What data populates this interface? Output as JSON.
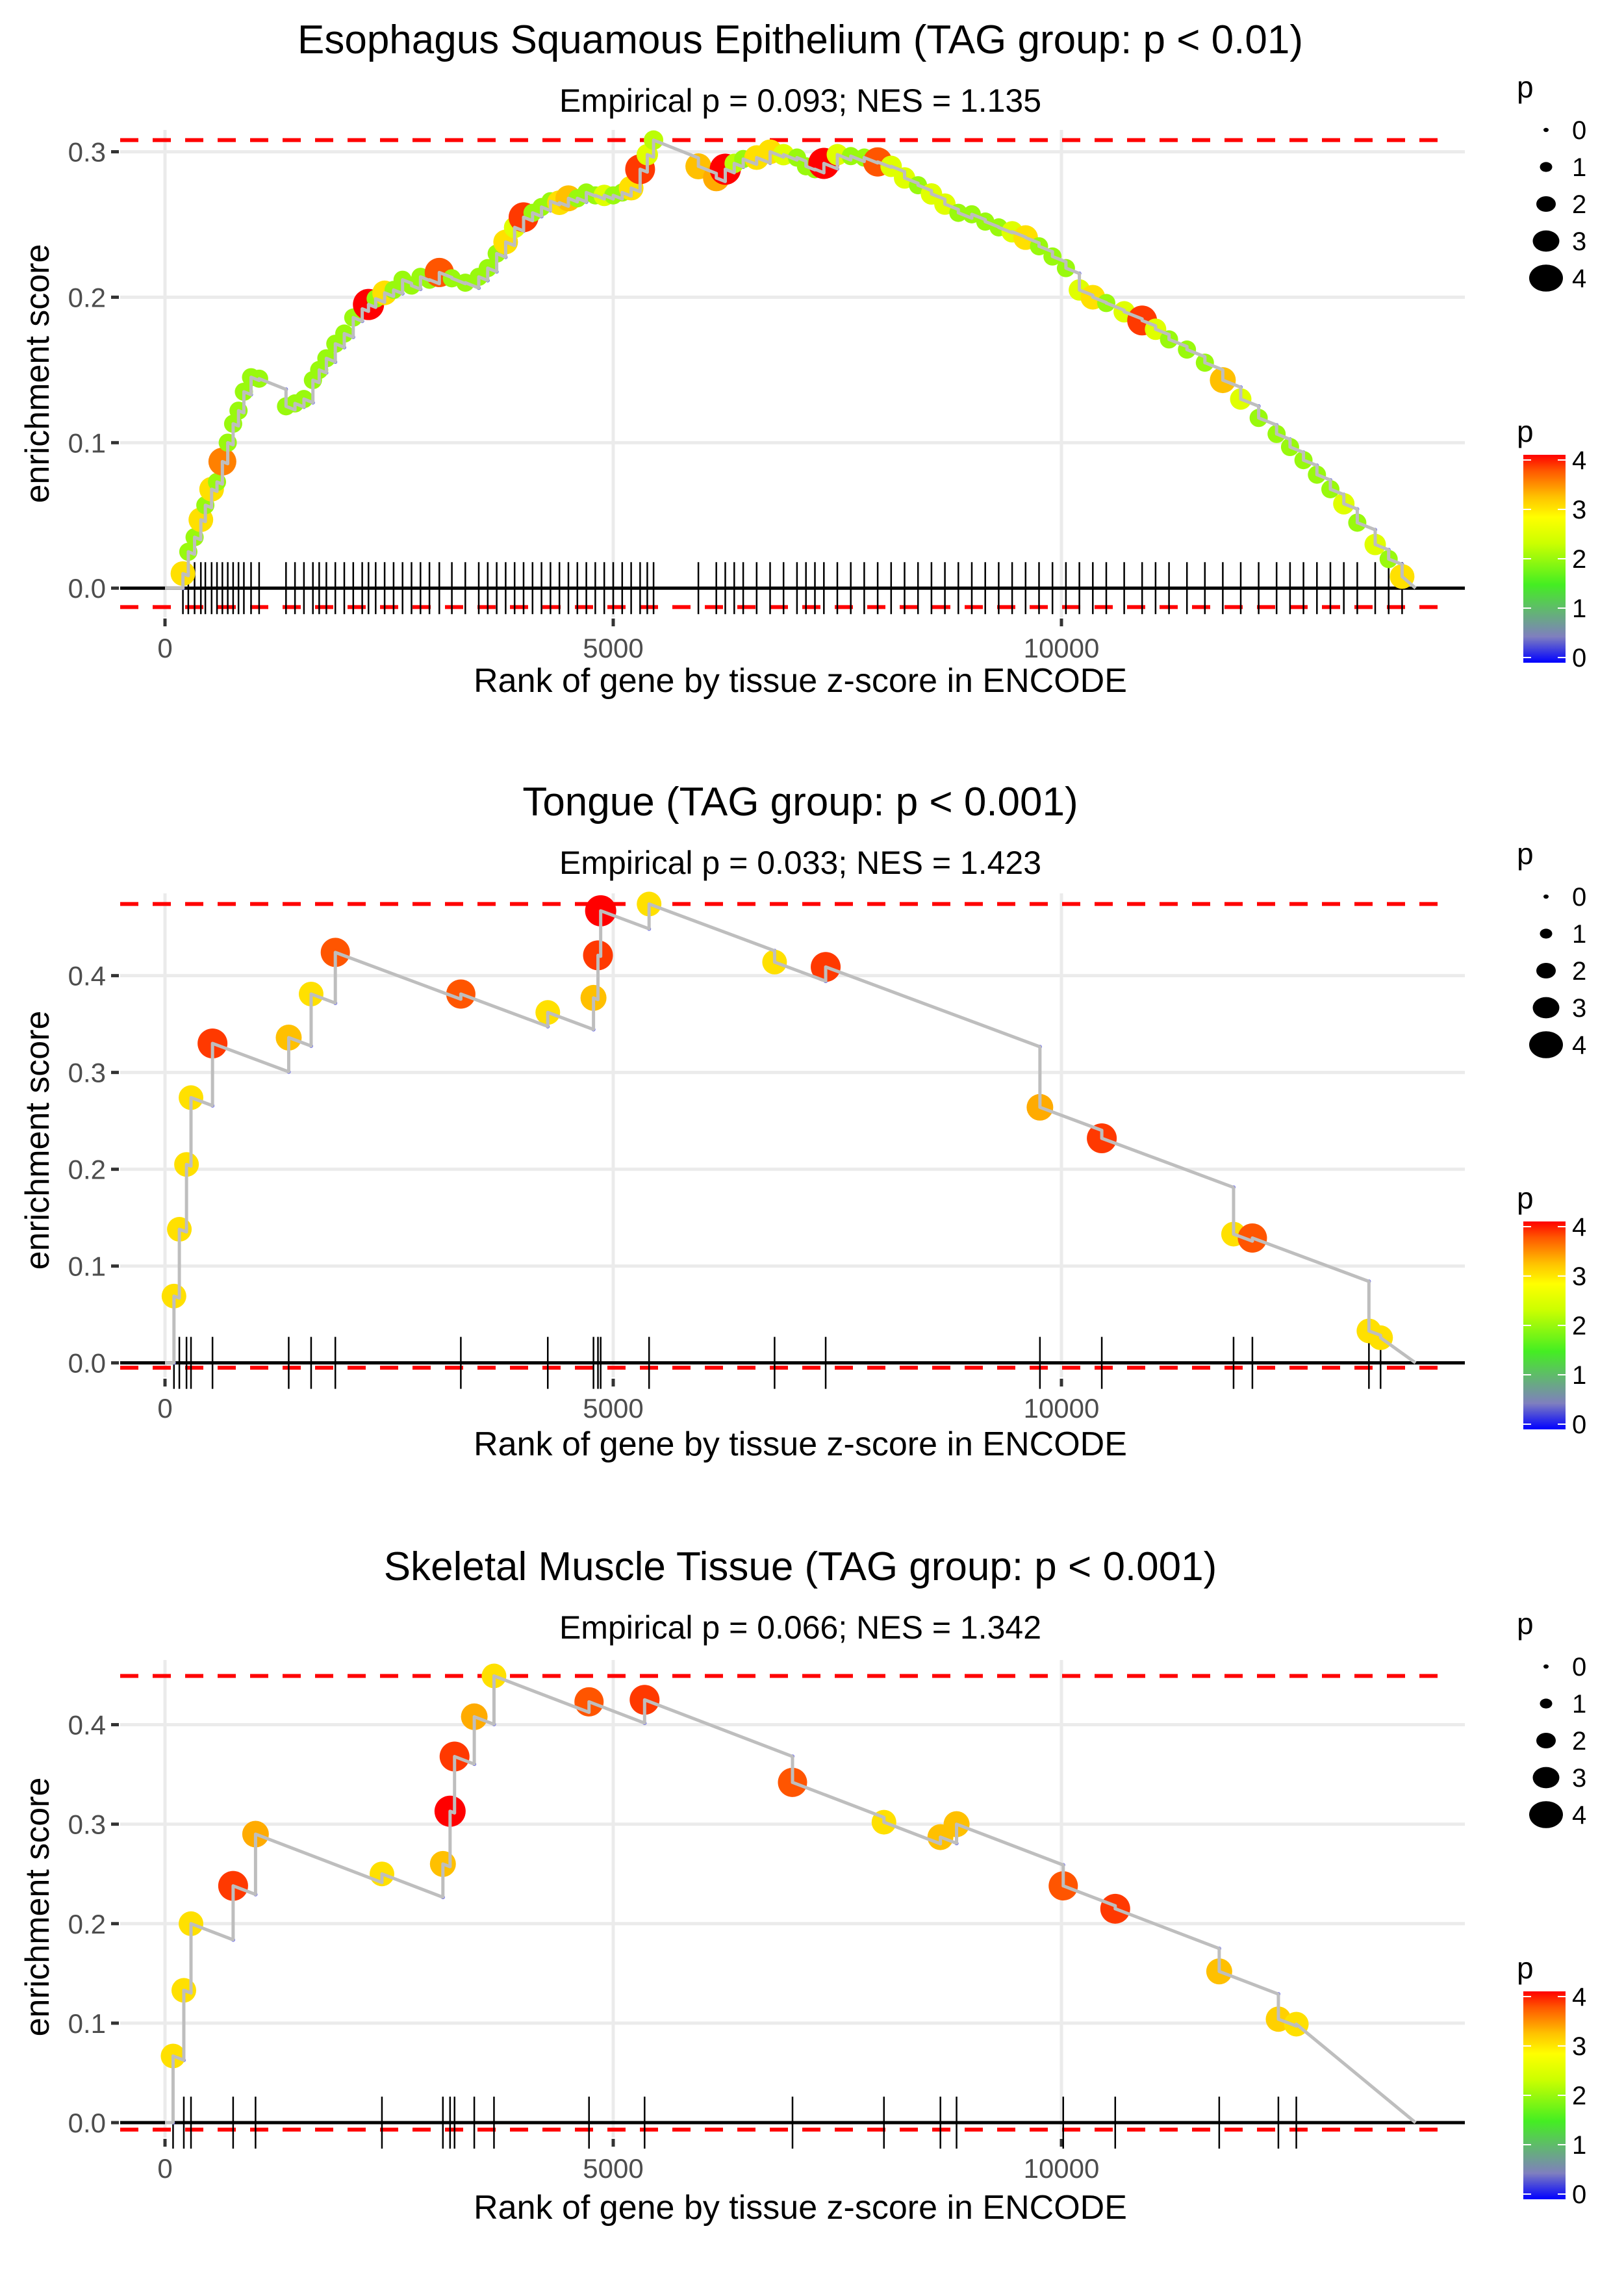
{
  "figure": {
    "legend_size_title": "p",
    "legend_color_title": "p",
    "legend_size_levels": [
      "0",
      "1",
      "2",
      "3",
      "4"
    ],
    "legend_color_ticks": [
      "4",
      "3",
      "2",
      "1",
      "0"
    ],
    "colorscale": [
      "#0000ff",
      "#7f7fbf",
      "#44ee44",
      "#ccff00",
      "#ffff00",
      "#ffa500",
      "#ff4500",
      "#ff0000"
    ]
  },
  "chart_data": [
    {
      "type": "line",
      "title": "Esophagus Squamous Epithelium (TAG group: p < 0.01)",
      "subtitle": "Empirical p = 0.093; NES = 1.135",
      "xlabel": "Rank of gene by tissue z-score in ENCODE",
      "ylabel": "enrichment score",
      "xlim": [
        -500,
        14500
      ],
      "ylim": [
        -0.02,
        0.315
      ],
      "xticks": [
        0,
        5000,
        10000
      ],
      "xtick_labels": [
        "0",
        "5000",
        "10000"
      ],
      "yticks": [
        0.0,
        0.1,
        0.2,
        0.3
      ],
      "ytick_labels": [
        "0.0",
        "0.1",
        "0.2",
        "0.3"
      ],
      "max_es": 0.308,
      "min_es": -0.013,
      "grid": true,
      "legend": "right",
      "x_end": 13950,
      "points": [
        [
          200,
          0.01,
          3
        ],
        [
          260,
          0.025,
          2
        ],
        [
          330,
          0.035,
          2
        ],
        [
          400,
          0.047,
          3
        ],
        [
          450,
          0.057,
          2
        ],
        [
          520,
          0.068,
          3
        ],
        [
          580,
          0.073,
          2
        ],
        [
          640,
          0.087,
          3.5
        ],
        [
          700,
          0.1,
          2
        ],
        [
          760,
          0.113,
          2
        ],
        [
          820,
          0.122,
          2
        ],
        [
          880,
          0.135,
          2
        ],
        [
          960,
          0.145,
          2
        ],
        [
          1050,
          0.144,
          2
        ],
        [
          1350,
          0.125,
          2
        ],
        [
          1450,
          0.127,
          2
        ],
        [
          1550,
          0.13,
          2
        ],
        [
          1650,
          0.143,
          2
        ],
        [
          1720,
          0.15,
          2
        ],
        [
          1800,
          0.158,
          2
        ],
        [
          1900,
          0.168,
          2
        ],
        [
          2000,
          0.175,
          2
        ],
        [
          2100,
          0.186,
          2
        ],
        [
          2200,
          0.192,
          2
        ],
        [
          2270,
          0.195,
          4
        ],
        [
          2350,
          0.199,
          2
        ],
        [
          2450,
          0.203,
          3
        ],
        [
          2550,
          0.205,
          2
        ],
        [
          2650,
          0.212,
          2
        ],
        [
          2750,
          0.208,
          2
        ],
        [
          2850,
          0.214,
          2
        ],
        [
          2950,
          0.212,
          2
        ],
        [
          3060,
          0.217,
          3.7
        ],
        [
          3200,
          0.213,
          2
        ],
        [
          3350,
          0.21,
          2
        ],
        [
          3500,
          0.214,
          2
        ],
        [
          3600,
          0.22,
          2
        ],
        [
          3700,
          0.23,
          2
        ],
        [
          3800,
          0.238,
          3
        ],
        [
          3900,
          0.248,
          2.5
        ],
        [
          4000,
          0.255,
          3.8
        ],
        [
          4100,
          0.258,
          2
        ],
        [
          4200,
          0.262,
          2
        ],
        [
          4300,
          0.266,
          2
        ],
        [
          4400,
          0.265,
          3
        ],
        [
          4500,
          0.268,
          3.2
        ],
        [
          4600,
          0.268,
          2
        ],
        [
          4700,
          0.272,
          2
        ],
        [
          4800,
          0.27,
          2
        ],
        [
          4900,
          0.27,
          2.5
        ],
        [
          5000,
          0.27,
          2
        ],
        [
          5100,
          0.272,
          2
        ],
        [
          5200,
          0.275,
          3
        ],
        [
          5300,
          0.288,
          3.8
        ],
        [
          5380,
          0.298,
          2.5
        ],
        [
          5450,
          0.308,
          2.2
        ],
        [
          5950,
          0.29,
          3.2
        ],
        [
          6150,
          0.282,
          3.3
        ],
        [
          6250,
          0.288,
          4
        ],
        [
          6350,
          0.292,
          2.2
        ],
        [
          6450,
          0.295,
          2
        ],
        [
          6600,
          0.296,
          3
        ],
        [
          6750,
          0.3,
          3
        ],
        [
          6900,
          0.298,
          2.5
        ],
        [
          7050,
          0.296,
          2
        ],
        [
          7150,
          0.29,
          2
        ],
        [
          7250,
          0.288,
          2
        ],
        [
          7350,
          0.292,
          4
        ],
        [
          7500,
          0.298,
          2.5
        ],
        [
          7650,
          0.297,
          2
        ],
        [
          7800,
          0.296,
          2
        ],
        [
          7950,
          0.293,
          3.7
        ],
        [
          8100,
          0.29,
          2.5
        ],
        [
          8250,
          0.282,
          2.5
        ],
        [
          8400,
          0.277,
          2
        ],
        [
          8550,
          0.271,
          2.5
        ],
        [
          8700,
          0.264,
          2.5
        ],
        [
          8850,
          0.258,
          2
        ],
        [
          9000,
          0.257,
          2
        ],
        [
          9150,
          0.252,
          2
        ],
        [
          9300,
          0.248,
          2
        ],
        [
          9450,
          0.245,
          2.5
        ],
        [
          9600,
          0.241,
          3
        ],
        [
          9750,
          0.235,
          2
        ],
        [
          9900,
          0.228,
          2
        ],
        [
          10050,
          0.22,
          2
        ],
        [
          10200,
          0.205,
          2.5
        ],
        [
          10350,
          0.2,
          3
        ],
        [
          10500,
          0.196,
          2
        ],
        [
          10700,
          0.19,
          2.5
        ],
        [
          10900,
          0.184,
          3.8
        ],
        [
          11050,
          0.178,
          2.5
        ],
        [
          11200,
          0.171,
          2
        ],
        [
          11400,
          0.164,
          2
        ],
        [
          11600,
          0.155,
          2
        ],
        [
          11800,
          0.143,
          3.2
        ],
        [
          12000,
          0.13,
          2.5
        ],
        [
          12200,
          0.117,
          2
        ],
        [
          12400,
          0.106,
          2
        ],
        [
          12550,
          0.097,
          2
        ],
        [
          12700,
          0.088,
          2
        ],
        [
          12850,
          0.078,
          2
        ],
        [
          13000,
          0.068,
          2
        ],
        [
          13150,
          0.058,
          2.5
        ],
        [
          13300,
          0.045,
          2
        ],
        [
          13500,
          0.03,
          2.5
        ],
        [
          13650,
          0.02,
          2
        ],
        [
          13800,
          0.008,
          3
        ]
      ]
    },
    {
      "type": "line",
      "title": "Tongue (TAG group: p < 0.001)",
      "subtitle": "Empirical p = 0.033; NES = 1.423",
      "xlabel": "Rank of gene by tissue z-score in ENCODE",
      "ylabel": "enrichment score",
      "xlim": [
        -500,
        14500
      ],
      "ylim": [
        -0.015,
        0.485
      ],
      "xticks": [
        0,
        5000,
        10000
      ],
      "xtick_labels": [
        "0",
        "5000",
        "10000"
      ],
      "yticks": [
        0.0,
        0.1,
        0.2,
        0.3,
        0.4
      ],
      "ytick_labels": [
        "0.0",
        "0.1",
        "0.2",
        "0.3",
        "0.4"
      ],
      "max_es": 0.474,
      "min_es": -0.005,
      "grid": true,
      "legend": "right",
      "x_end": 13950,
      "points": [
        [
          100,
          0.069,
          3
        ],
        [
          160,
          0.138,
          3
        ],
        [
          240,
          0.205,
          3
        ],
        [
          290,
          0.274,
          3
        ],
        [
          530,
          0.33,
          3.8
        ],
        [
          1380,
          0.336,
          3.2
        ],
        [
          1630,
          0.381,
          3
        ],
        [
          1900,
          0.424,
          3.7
        ],
        [
          3300,
          0.381,
          3.7
        ],
        [
          4270,
          0.362,
          3
        ],
        [
          4780,
          0.377,
          3.2
        ],
        [
          4830,
          0.421,
          3.8
        ],
        [
          4860,
          0.467,
          4
        ],
        [
          5400,
          0.474,
          3
        ],
        [
          6800,
          0.414,
          3
        ],
        [
          7370,
          0.409,
          3.8
        ],
        [
          9760,
          0.264,
          3.3
        ],
        [
          10450,
          0.232,
          3.8
        ],
        [
          11920,
          0.133,
          3
        ],
        [
          12130,
          0.129,
          3.7
        ],
        [
          13430,
          0.033,
          3
        ],
        [
          13560,
          0.026,
          3
        ]
      ]
    },
    {
      "type": "line",
      "title": "Skeletal Muscle Tissue (TAG group: p < 0.001)",
      "subtitle": "Empirical p = 0.066; NES = 1.342",
      "xlabel": "Rank of gene by tissue z-score in ENCODE",
      "ylabel": "enrichment score",
      "xlim": [
        -500,
        14500
      ],
      "ylim": [
        -0.015,
        0.465
      ],
      "xticks": [
        0,
        5000,
        10000
      ],
      "xtick_labels": [
        "0",
        "5000",
        "10000"
      ],
      "yticks": [
        0.0,
        0.1,
        0.2,
        0.3,
        0.4
      ],
      "ytick_labels": [
        "0.0",
        "0.1",
        "0.2",
        "0.3",
        "0.4"
      ],
      "max_es": 0.449,
      "min_es": -0.007,
      "grid": true,
      "legend": "right",
      "x_end": 13950,
      "points": [
        [
          90,
          0.067,
          3
        ],
        [
          210,
          0.133,
          3
        ],
        [
          290,
          0.2,
          3
        ],
        [
          760,
          0.238,
          3.8
        ],
        [
          1010,
          0.29,
          3.3
        ],
        [
          2420,
          0.25,
          3
        ],
        [
          3100,
          0.26,
          3.2
        ],
        [
          3180,
          0.313,
          4
        ],
        [
          3230,
          0.368,
          3.8
        ],
        [
          3450,
          0.408,
          3.3
        ],
        [
          3670,
          0.449,
          3
        ],
        [
          4730,
          0.423,
          3.7
        ],
        [
          5350,
          0.425,
          3.8
        ],
        [
          7000,
          0.342,
          3.7
        ],
        [
          8020,
          0.302,
          3
        ],
        [
          8650,
          0.287,
          3.2
        ],
        [
          8830,
          0.3,
          3.2
        ],
        [
          10020,
          0.238,
          3.7
        ],
        [
          10600,
          0.215,
          3.8
        ],
        [
          11760,
          0.152,
          3.2
        ],
        [
          12420,
          0.104,
          3.1
        ],
        [
          12620,
          0.099,
          3
        ]
      ]
    }
  ]
}
